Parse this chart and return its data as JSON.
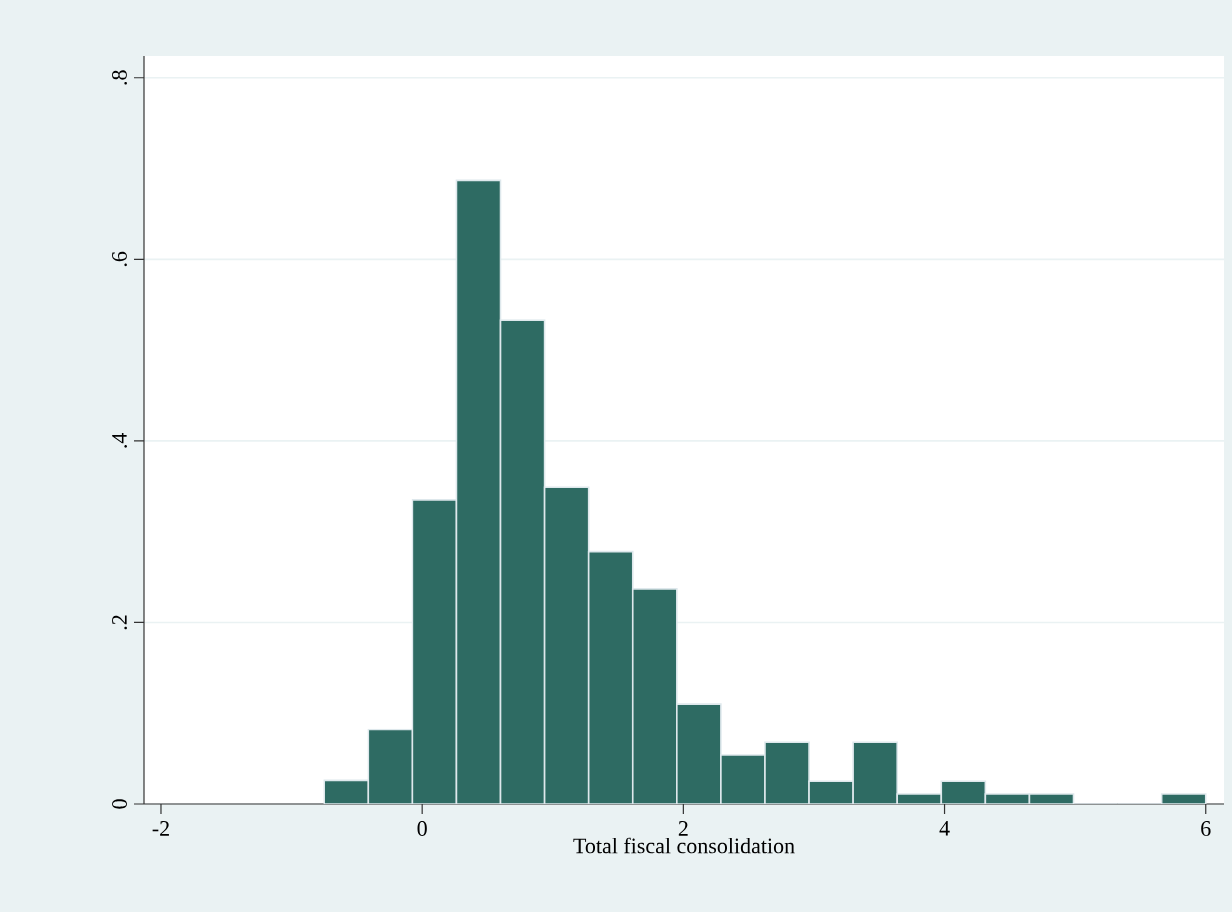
{
  "chart_data": {
    "type": "histogram",
    "xlabel": "Total fiscal consolidation",
    "bins": [
      -0.75,
      -0.4125,
      -0.075,
      0.2625,
      0.6,
      0.9375,
      1.275,
      1.6125,
      1.95,
      2.2875,
      2.625,
      2.9625,
      3.3,
      3.6375,
      3.975,
      4.3125,
      4.65,
      4.9875,
      5.325,
      5.6625,
      6.0
    ],
    "values": [
      0.026,
      0.082,
      0.335,
      0.687,
      0.533,
      0.349,
      0.278,
      0.237,
      0.11,
      0.054,
      0.068,
      0.025,
      0.068,
      0.011,
      0.025,
      0.011,
      0.011,
      0,
      0,
      0.011
    ],
    "color": "#2e6b63",
    "xlim": [
      -2.13,
      6.14
    ],
    "ylim": [
      0,
      0.824
    ],
    "xticks": [
      -2,
      0,
      2,
      4,
      6
    ],
    "yticks": [
      {
        "value": 0,
        "label": "0"
      },
      {
        "value": 0.2,
        "label": ".2"
      },
      {
        "value": 0.4,
        "label": ".4"
      },
      {
        "value": 0.6,
        "label": ".6"
      },
      {
        "value": 0.8,
        "label": ".8"
      }
    ],
    "grid": "y"
  }
}
